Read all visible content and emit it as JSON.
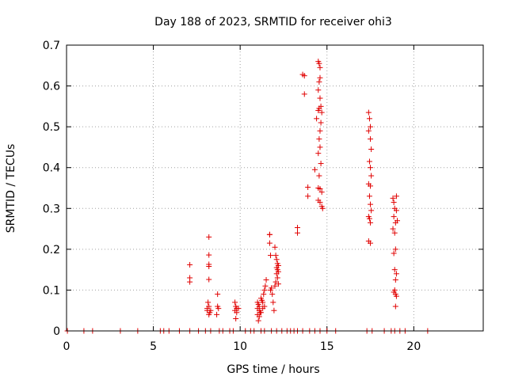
{
  "chart_data": {
    "type": "scatter",
    "title": "Day 188 of 2023, SRMTID for receiver ohi3",
    "xlabel": "GPS time / hours",
    "ylabel": "SRMTID / TECUs",
    "xlim": [
      0,
      24
    ],
    "ylim": [
      0,
      0.7
    ],
    "xticks": [
      0,
      5,
      10,
      15,
      20
    ],
    "yticks": [
      0,
      0.1,
      0.2,
      0.3,
      0.4,
      0.5,
      0.6,
      0.7
    ],
    "ytick_labels": [
      "0",
      "0.1",
      "0.2",
      "0.3",
      "0.4",
      "0.5",
      "0.6",
      "0.7"
    ],
    "grid": true,
    "marker": "+",
    "color": "#e00000",
    "series": [
      {
        "name": "SRMTID",
        "points": [
          [
            0.05,
            0
          ],
          [
            1.0,
            0
          ],
          [
            1.5,
            0
          ],
          [
            3.1,
            0
          ],
          [
            4.1,
            0
          ],
          [
            5.4,
            0
          ],
          [
            5.6,
            0
          ],
          [
            5.9,
            0
          ],
          [
            6.5,
            0
          ],
          [
            7.1,
            0
          ],
          [
            7.6,
            0
          ],
          [
            8.0,
            0
          ],
          [
            8.3,
            0
          ],
          [
            8.8,
            0
          ],
          [
            9.0,
            0
          ],
          [
            9.4,
            0
          ],
          [
            9.6,
            0
          ],
          [
            10.3,
            0
          ],
          [
            10.6,
            0
          ],
          [
            10.8,
            0
          ],
          [
            11.2,
            0
          ],
          [
            11.4,
            0
          ],
          [
            11.8,
            0
          ],
          [
            12.1,
            0
          ],
          [
            12.4,
            0
          ],
          [
            12.7,
            0
          ],
          [
            12.9,
            0
          ],
          [
            13.1,
            0
          ],
          [
            13.3,
            0
          ],
          [
            13.6,
            0
          ],
          [
            14.0,
            0
          ],
          [
            14.3,
            0
          ],
          [
            14.6,
            0
          ],
          [
            15.0,
            0
          ],
          [
            15.5,
            0
          ],
          [
            17.3,
            0
          ],
          [
            17.6,
            0
          ],
          [
            18.3,
            0
          ],
          [
            18.7,
            0
          ],
          [
            18.9,
            0
          ],
          [
            19.2,
            0
          ],
          [
            19.5,
            0
          ],
          [
            20.8,
            0
          ],
          [
            7.1,
            0.162
          ],
          [
            7.1,
            0.13
          ],
          [
            7.1,
            0.12
          ],
          [
            8.2,
            0.23
          ],
          [
            8.2,
            0.186
          ],
          [
            8.2,
            0.163
          ],
          [
            8.2,
            0.158
          ],
          [
            8.2,
            0.126
          ],
          [
            8.15,
            0.07
          ],
          [
            8.2,
            0.06
          ],
          [
            8.1,
            0.05
          ],
          [
            8.25,
            0.045
          ],
          [
            8.2,
            0.04
          ],
          [
            8.1,
            0.055
          ],
          [
            8.3,
            0.05
          ],
          [
            8.7,
            0.09
          ],
          [
            8.7,
            0.06
          ],
          [
            8.75,
            0.055
          ],
          [
            8.65,
            0.04
          ],
          [
            9.7,
            0.07
          ],
          [
            9.75,
            0.06
          ],
          [
            9.8,
            0.055
          ],
          [
            9.7,
            0.05
          ],
          [
            9.8,
            0.045
          ],
          [
            9.75,
            0.03
          ],
          [
            9.9,
            0.055
          ],
          [
            11.0,
            0.07
          ],
          [
            11.05,
            0.065
          ],
          [
            11.1,
            0.06
          ],
          [
            11.0,
            0.055
          ],
          [
            11.1,
            0.05
          ],
          [
            11.15,
            0.045
          ],
          [
            11.0,
            0.04
          ],
          [
            11.1,
            0.035
          ],
          [
            11.05,
            0.025
          ],
          [
            11.2,
            0.08
          ],
          [
            11.25,
            0.075
          ],
          [
            11.3,
            0.07
          ],
          [
            11.35,
            0.09
          ],
          [
            11.4,
            0.1
          ],
          [
            11.45,
            0.11
          ],
          [
            11.5,
            0.125
          ],
          [
            11.3,
            0.055
          ],
          [
            11.2,
            0.045
          ],
          [
            11.4,
            0.06
          ],
          [
            11.7,
            0.236
          ],
          [
            11.7,
            0.236
          ],
          [
            11.7,
            0.215
          ],
          [
            11.75,
            0.185
          ],
          [
            11.8,
            0.105
          ],
          [
            11.75,
            0.1
          ],
          [
            11.85,
            0.09
          ],
          [
            11.9,
            0.07
          ],
          [
            11.95,
            0.05
          ],
          [
            12.0,
            0.205
          ],
          [
            12.05,
            0.185
          ],
          [
            12.1,
            0.175
          ],
          [
            12.15,
            0.165
          ],
          [
            12.2,
            0.16
          ],
          [
            12.1,
            0.155
          ],
          [
            12.15,
            0.15
          ],
          [
            12.2,
            0.145
          ],
          [
            12.1,
            0.14
          ],
          [
            12.15,
            0.13
          ],
          [
            12.2,
            0.115
          ],
          [
            12.05,
            0.12
          ],
          [
            12.0,
            0.11
          ],
          [
            13.3,
            0.253
          ],
          [
            13.3,
            0.24
          ],
          [
            13.6,
            0.628
          ],
          [
            13.7,
            0.625
          ],
          [
            13.7,
            0.58
          ],
          [
            13.9,
            0.352
          ],
          [
            13.9,
            0.33
          ],
          [
            14.3,
            0.395
          ],
          [
            14.4,
            0.52
          ],
          [
            14.5,
            0.66
          ],
          [
            14.55,
            0.655
          ],
          [
            14.6,
            0.645
          ],
          [
            14.6,
            0.62
          ],
          [
            14.55,
            0.61
          ],
          [
            14.5,
            0.59
          ],
          [
            14.6,
            0.57
          ],
          [
            14.65,
            0.55
          ],
          [
            14.55,
            0.545
          ],
          [
            14.5,
            0.54
          ],
          [
            14.7,
            0.535
          ],
          [
            14.65,
            0.51
          ],
          [
            14.6,
            0.49
          ],
          [
            14.55,
            0.47
          ],
          [
            14.6,
            0.45
          ],
          [
            14.5,
            0.435
          ],
          [
            14.65,
            0.41
          ],
          [
            14.55,
            0.38
          ],
          [
            14.5,
            0.35
          ],
          [
            14.6,
            0.348
          ],
          [
            14.7,
            0.34
          ],
          [
            14.5,
            0.32
          ],
          [
            14.6,
            0.315
          ],
          [
            14.7,
            0.305
          ],
          [
            14.75,
            0.3
          ],
          [
            17.4,
            0.535
          ],
          [
            17.45,
            0.52
          ],
          [
            17.5,
            0.5
          ],
          [
            17.4,
            0.49
          ],
          [
            17.5,
            0.47
          ],
          [
            17.55,
            0.445
          ],
          [
            17.45,
            0.415
          ],
          [
            17.5,
            0.4
          ],
          [
            17.55,
            0.38
          ],
          [
            17.4,
            0.36
          ],
          [
            17.5,
            0.355
          ],
          [
            17.45,
            0.33
          ],
          [
            17.5,
            0.31
          ],
          [
            17.55,
            0.295
          ],
          [
            17.4,
            0.28
          ],
          [
            17.45,
            0.275
          ],
          [
            17.5,
            0.265
          ],
          [
            17.4,
            0.22
          ],
          [
            17.5,
            0.215
          ],
          [
            18.8,
            0.325
          ],
          [
            18.85,
            0.315
          ],
          [
            19.0,
            0.33
          ],
          [
            18.9,
            0.3
          ],
          [
            19.0,
            0.295
          ],
          [
            18.85,
            0.28
          ],
          [
            19.05,
            0.27
          ],
          [
            18.95,
            0.265
          ],
          [
            18.8,
            0.25
          ],
          [
            18.9,
            0.24
          ],
          [
            18.95,
            0.2
          ],
          [
            18.85,
            0.19
          ],
          [
            18.9,
            0.15
          ],
          [
            19.0,
            0.14
          ],
          [
            18.95,
            0.125
          ],
          [
            18.9,
            0.1
          ],
          [
            18.85,
            0.095
          ],
          [
            18.95,
            0.09
          ],
          [
            19.0,
            0.085
          ],
          [
            18.95,
            0.06
          ]
        ]
      }
    ]
  }
}
